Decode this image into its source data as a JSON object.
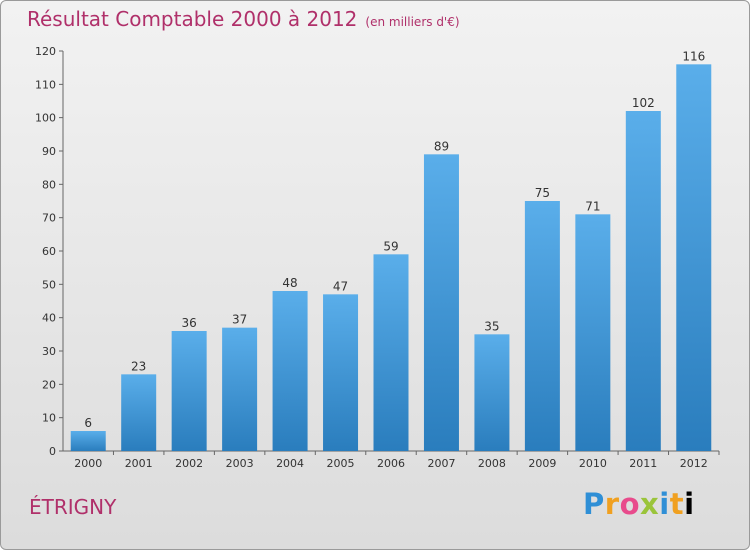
{
  "chart_data": {
    "type": "bar",
    "title": "Résultat Comptable 2000 à 2012",
    "subtitle": "(en milliers d'€)",
    "categories": [
      "2000",
      "2001",
      "2002",
      "2003",
      "2004",
      "2005",
      "2006",
      "2007",
      "2008",
      "2009",
      "2010",
      "2011",
      "2012"
    ],
    "values": [
      6,
      23,
      36,
      37,
      48,
      47,
      59,
      89,
      35,
      75,
      71,
      102,
      116
    ],
    "ylim": [
      0,
      120
    ],
    "yticks": [
      0,
      10,
      20,
      30,
      40,
      50,
      60,
      70,
      80,
      90,
      100,
      110,
      120
    ],
    "grid": false,
    "bar_color_top": "#5aaeea",
    "bar_color_bottom": "#2a7dbd"
  },
  "footer": {
    "commune": "ÉTRIGNY",
    "logo": "Proxiti"
  }
}
